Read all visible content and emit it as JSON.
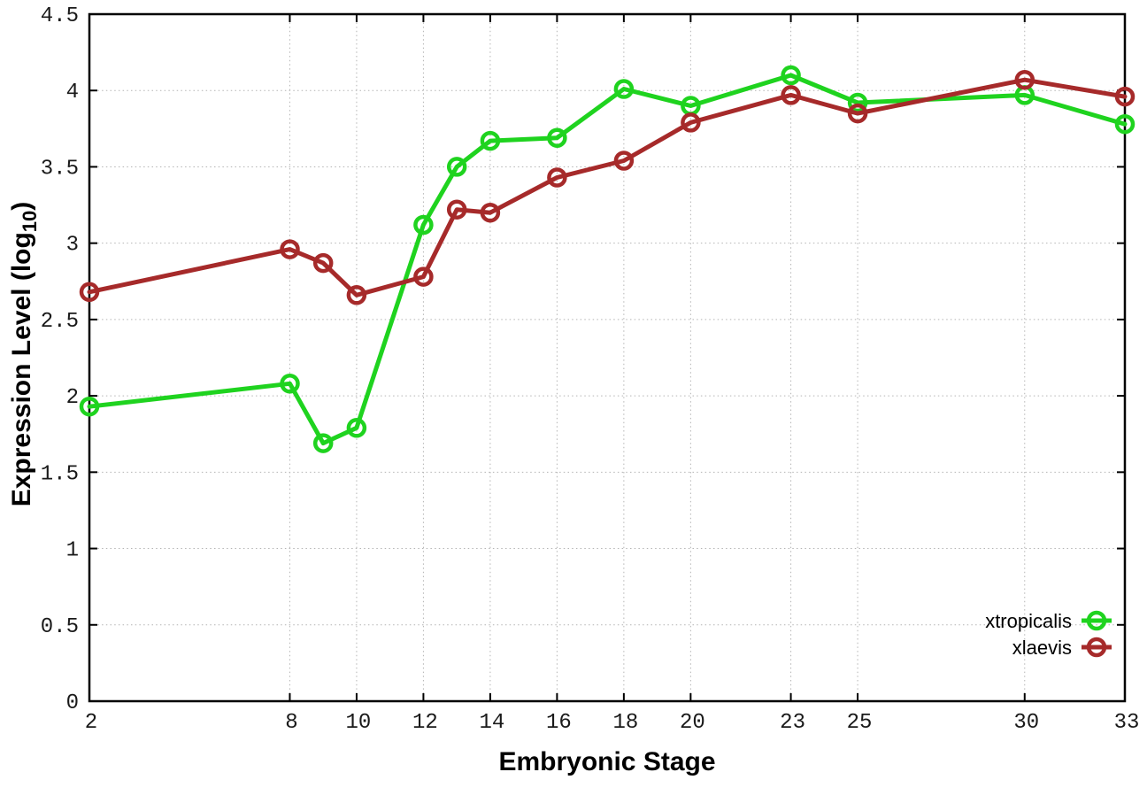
{
  "chart_data": {
    "type": "line",
    "title": "",
    "xlabel": "Embryonic Stage",
    "ylabel": {
      "main": "Expression Level (log",
      "sub": "10",
      "end": ")"
    },
    "xlim": [
      2,
      33
    ],
    "ylim": [
      0,
      4.5
    ],
    "grid": true,
    "grid_style": "dotted",
    "legend_position": "bottom-right",
    "x": [
      2,
      8,
      9,
      10,
      12,
      13,
      14,
      16,
      18,
      20,
      23,
      25,
      30,
      33
    ],
    "x_ticks": {
      "values": [
        2,
        8,
        10,
        12,
        14,
        16,
        18,
        20,
        23,
        25,
        30,
        33
      ],
      "labels": [
        "2",
        "8",
        "10",
        "12",
        "14",
        "16",
        "18",
        "20",
        "23",
        "25",
        "30",
        "33"
      ]
    },
    "y_ticks": {
      "values": [
        0,
        0.5,
        1,
        1.5,
        2,
        2.5,
        3,
        3.5,
        4,
        4.5
      ],
      "labels": [
        "0",
        "0.5",
        "1",
        "1.5",
        "2",
        "2.5",
        "3",
        "3.5",
        "4",
        "4.5"
      ]
    },
    "series": [
      {
        "name": "xtropicalis",
        "color": "#1fd31f",
        "marker": "open-circle",
        "values": [
          1.93,
          2.08,
          1.69,
          1.79,
          3.12,
          3.5,
          3.67,
          3.69,
          4.01,
          3.9,
          4.1,
          3.92,
          3.97,
          3.78
        ]
      },
      {
        "name": "xlaevis",
        "color": "#a62a2a",
        "marker": "open-circle",
        "values": [
          2.68,
          2.96,
          2.87,
          2.66,
          2.78,
          3.22,
          3.2,
          3.43,
          3.54,
          3.79,
          3.97,
          3.85,
          4.07,
          3.96
        ]
      }
    ],
    "colors": {
      "grid": "#b4b4b4",
      "axis": "#000000",
      "background": "#ffffff"
    }
  }
}
